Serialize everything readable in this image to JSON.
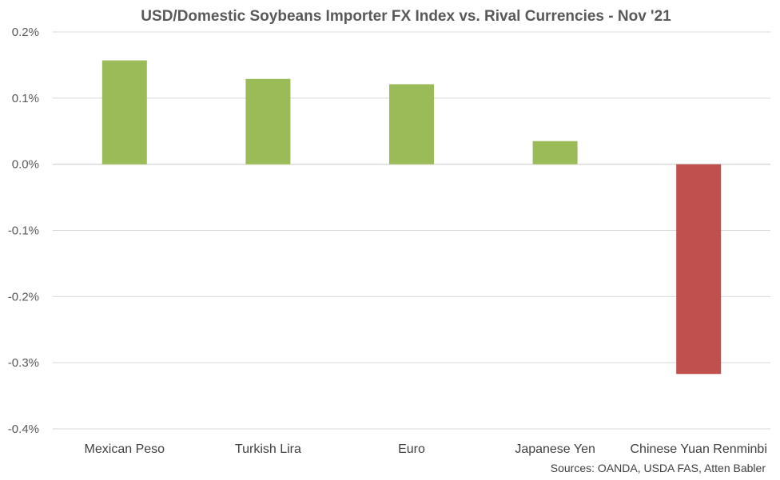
{
  "chart_data": {
    "type": "bar",
    "title": "USD/Domestic Soybeans Importer FX Index vs. Rival Currencies - Nov '21",
    "categories": [
      "Mexican Peso",
      "Turkish Lira",
      "Euro",
      "Japanese Yen",
      "Chinese Yuan Renminbi"
    ],
    "values": [
      0.157,
      0.129,
      0.121,
      0.035,
      -0.317
    ],
    "ylim": [
      -0.4,
      0.2
    ],
    "yticks": [
      0.2,
      0.1,
      0.0,
      -0.1,
      -0.2,
      -0.3,
      -0.4
    ],
    "ytick_labels": [
      "0.2%",
      "0.1%",
      "0.0%",
      "-0.1%",
      "-0.2%",
      "-0.3%",
      "-0.4%"
    ],
    "xlabel": "",
    "ylabel": "",
    "grid": true,
    "legend": "none",
    "colors": {
      "positive": "#9bbb59",
      "negative": "#c0504d"
    },
    "source": "Sources: OANDA, USDA FAS, Atten Babler"
  }
}
